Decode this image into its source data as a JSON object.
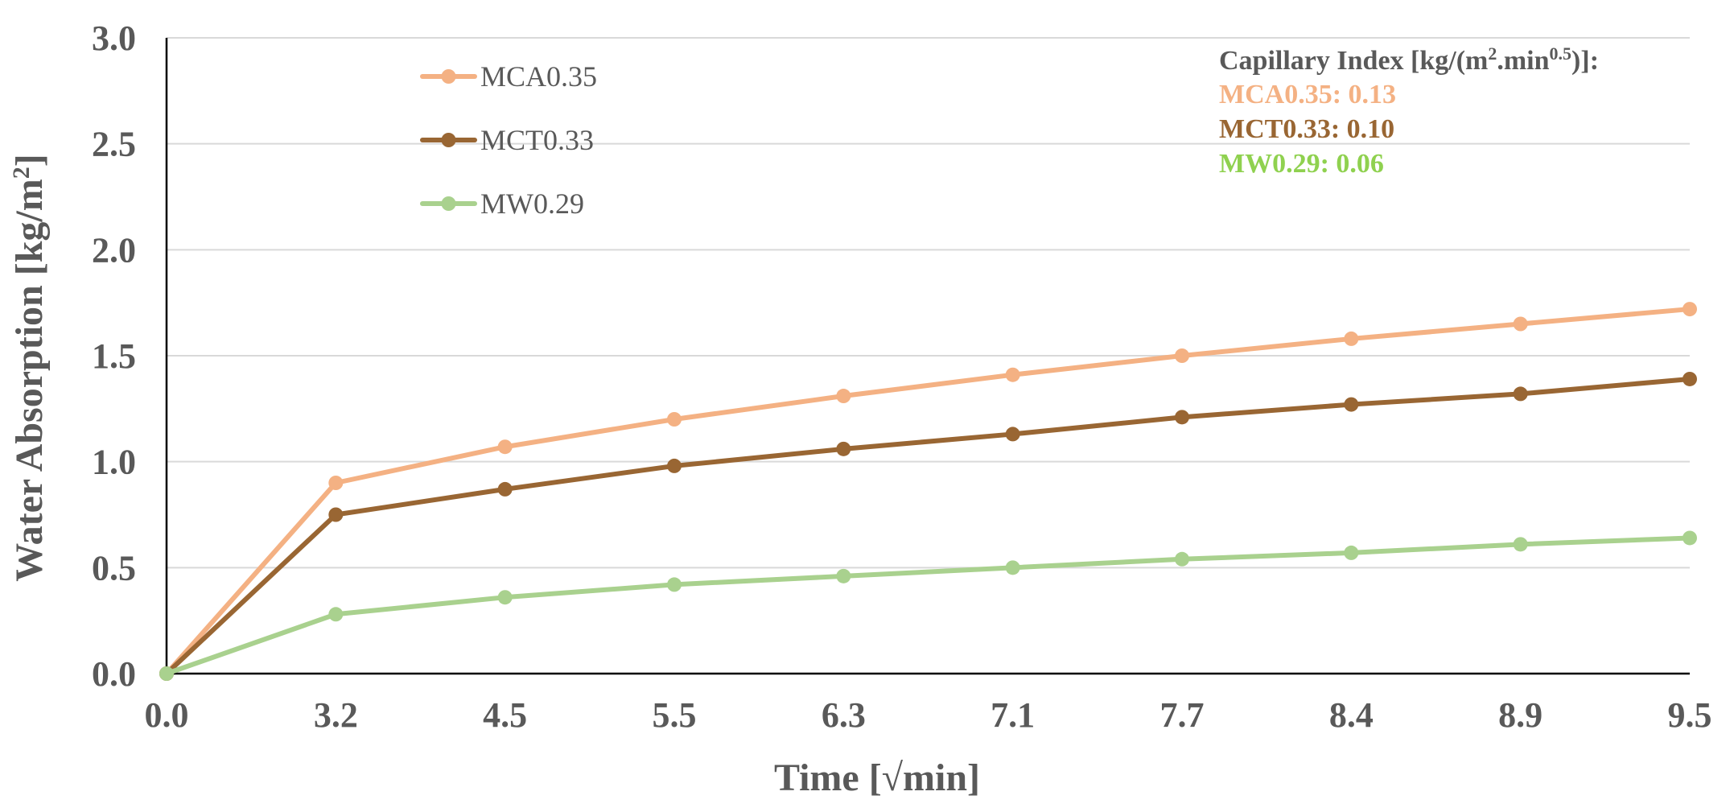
{
  "chart_data": {
    "type": "line",
    "title": "",
    "xlabel": "Time [√min]",
    "ylabel": "Water Absorption [kg/m²]",
    "ylabel_parts": {
      "main": "Water Absorption [kg/m",
      "sup": "2",
      "close": "]"
    },
    "categories": [
      "0.0",
      "3.2",
      "4.5",
      "5.5",
      "6.3",
      "7.1",
      "7.7",
      "8.4",
      "8.9",
      "9.5"
    ],
    "ylim": [
      0,
      3
    ],
    "yticks": [
      "0.0",
      "0.5",
      "1.0",
      "1.5",
      "2.0",
      "2.5",
      "3.0"
    ],
    "grid": true,
    "legend_position": "top-left",
    "series": [
      {
        "name": "MCA0.35",
        "color": "#F4B183",
        "values": [
          0.0,
          0.9,
          1.07,
          1.2,
          1.31,
          1.41,
          1.5,
          1.58,
          1.65,
          1.72
        ]
      },
      {
        "name": "MCT0.33",
        "color": "#996633",
        "values": [
          0.0,
          0.75,
          0.87,
          0.98,
          1.06,
          1.13,
          1.21,
          1.27,
          1.32,
          1.39
        ]
      },
      {
        "name": "MW0.29",
        "color": "#A9D18E",
        "values": [
          0.0,
          0.28,
          0.36,
          0.42,
          0.46,
          0.5,
          0.54,
          0.57,
          0.61,
          0.64
        ]
      }
    ],
    "annotation": {
      "header": {
        "part1": "Capillary Index [kg/(m",
        "sup1": "2",
        "part2": ".min",
        "sup2": "0.5",
        "part3": ")]:",
        "color": "#595959"
      },
      "lines": [
        {
          "text": "MCA0.35: 0.13",
          "color": "#F4B183"
        },
        {
          "text": "MCT0.33: 0.10",
          "color": "#996633"
        },
        {
          "text": "MW0.29: 0.06",
          "color": "#8FD14F"
        }
      ]
    }
  }
}
